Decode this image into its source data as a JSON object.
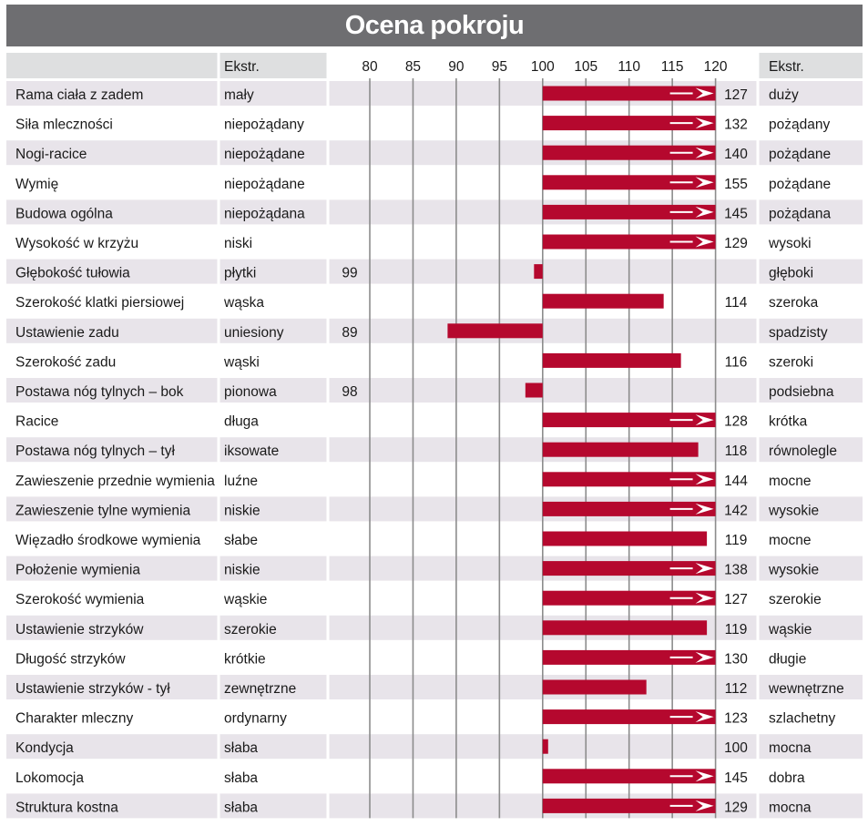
{
  "title": "Ocena pokroju",
  "header": {
    "ekstr_left": "Ekstr.",
    "ekstr_right": "Ekstr."
  },
  "chart_data": {
    "type": "bar",
    "title": "Ocena pokroju",
    "baseline": 100,
    "axis_ticks": [
      80,
      85,
      90,
      95,
      100,
      105,
      110,
      115,
      120
    ],
    "xlim": [
      80,
      120
    ],
    "capped_at": 120,
    "bar_color": "#b5082e",
    "arrow_marker": "white arrow for values above 120",
    "rows": [
      {
        "trait": "Rama ciała z zadem",
        "left": "mały",
        "value": 127,
        "right": "duży"
      },
      {
        "trait": "Siła mleczności",
        "left": "niepożądany",
        "value": 132,
        "right": "pożądany"
      },
      {
        "trait": "Nogi-racice",
        "left": "niepożądane",
        "value": 140,
        "right": "pożądane"
      },
      {
        "trait": "Wymię",
        "left": "niepożądane",
        "value": 155,
        "right": "pożądane"
      },
      {
        "trait": "Budowa ogólna",
        "left": "niepożądana",
        "value": 145,
        "right": "pożądana"
      },
      {
        "trait": "Wysokość w krzyżu",
        "left": "niski",
        "value": 129,
        "right": "wysoki"
      },
      {
        "trait": "Głębokość tułowia",
        "left": "płytki",
        "value": 99,
        "right": "głęboki"
      },
      {
        "trait": "Szerokość klatki piersiowej",
        "left": "wąska",
        "value": 114,
        "right": "szeroka"
      },
      {
        "trait": "Ustawienie zadu",
        "left": "uniesiony",
        "value": 89,
        "right": "spadzisty"
      },
      {
        "trait": "Szerokość zadu",
        "left": "wąski",
        "value": 116,
        "right": "szeroki"
      },
      {
        "trait": "Postawa nóg tylnych –  bok",
        "left": "pionowa",
        "value": 98,
        "right": "podsiebna"
      },
      {
        "trait": "Racice",
        "left": "długa",
        "value": 128,
        "right": "krótka"
      },
      {
        "trait": "Postawa nóg tylnych –  tył",
        "left": "iksowate",
        "value": 118,
        "right": "równolegle"
      },
      {
        "trait": "Zawieszenie przednie wymienia",
        "left": "luźne",
        "value": 144,
        "right": "mocne"
      },
      {
        "trait": "Zawieszenie tylne wymienia",
        "left": "niskie",
        "value": 142,
        "right": "wysokie"
      },
      {
        "trait": "Więzadło środkowe wymienia",
        "left": "słabe",
        "value": 119,
        "right": "mocne"
      },
      {
        "trait": "Położenie wymienia",
        "left": "niskie",
        "value": 138,
        "right": "wysokie"
      },
      {
        "trait": "Szerokość wymienia",
        "left": "wąskie",
        "value": 127,
        "right": "szerokie"
      },
      {
        "trait": "Ustawienie strzyków",
        "left": "szerokie",
        "value": 119,
        "right": "wąskie"
      },
      {
        "trait": "Długość strzyków",
        "left": "krótkie",
        "value": 130,
        "right": "długie"
      },
      {
        "trait": "Ustawienie strzyków - tył",
        "left": "zewnętrzne",
        "value": 112,
        "right": "wewnętrzne"
      },
      {
        "trait": "Charakter mleczny",
        "left": "ordynarny",
        "value": 123,
        "right": "szlachetny"
      },
      {
        "trait": "Kondycja",
        "left": "słaba",
        "value": 100,
        "right": "mocna"
      },
      {
        "trait": "Lokomocja",
        "left": "słaba",
        "value": 145,
        "right": "dobra"
      },
      {
        "trait": "Struktura kostna",
        "left": "słaba",
        "value": 129,
        "right": "mocna"
      }
    ]
  }
}
